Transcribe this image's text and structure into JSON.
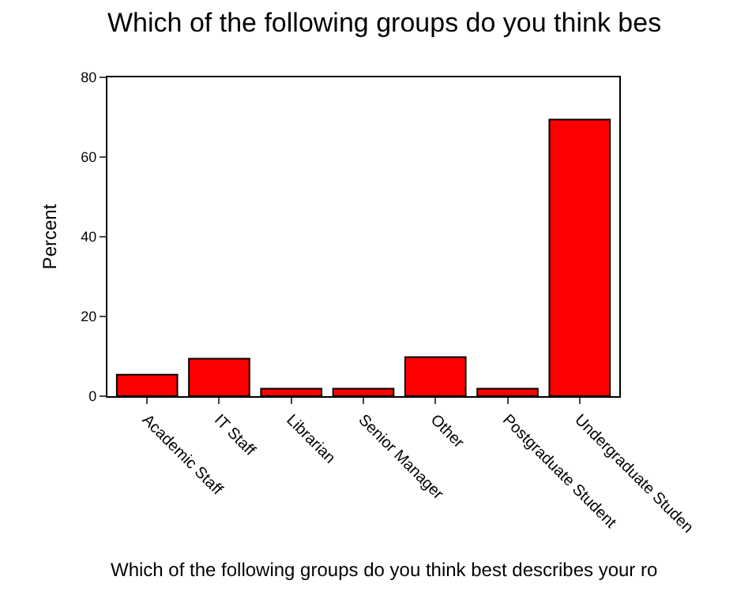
{
  "chart_data": {
    "type": "bar",
    "title": "Which of the following groups do you think bes",
    "xlabel": "Which of the following groups do you think best describes your ro",
    "ylabel": "Percent",
    "categories": [
      "Academic Staff",
      "IT Staff",
      "Librarian",
      "Senior Manager",
      "Other",
      "Postgraduate Student",
      "Undergraduate Studen"
    ],
    "values": [
      5.4,
      9.4,
      1.9,
      1.9,
      9.8,
      1.9,
      69.4
    ],
    "color": "#ff0000",
    "ylim": [
      0,
      80
    ],
    "yticks": [
      0,
      20,
      40,
      60,
      80
    ],
    "legend": false
  }
}
